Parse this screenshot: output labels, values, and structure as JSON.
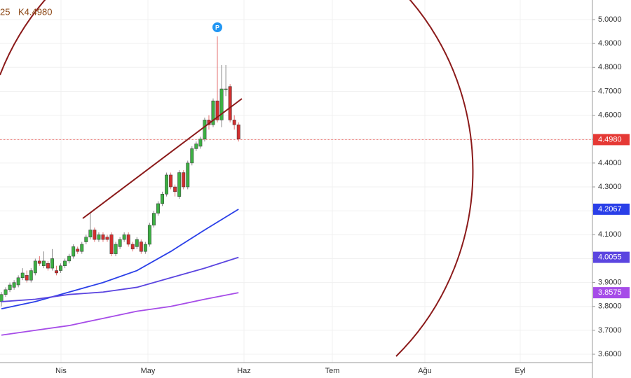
{
  "chart_data": {
    "type": "candlestick",
    "header": [
      "25",
      "K4.4980"
    ],
    "marker_label": "P",
    "x_axis_labels": [
      "Nis",
      "May",
      "Haz",
      "Tem",
      "Ağu",
      "Eyl"
    ],
    "ylim": [
      3.565,
      5.082
    ],
    "yticks": [
      {
        "value": 3.6,
        "label": "3.6000"
      },
      {
        "value": 3.7,
        "label": "3.7000"
      },
      {
        "value": 3.8,
        "label": "3.8000"
      },
      {
        "value": 3.9,
        "label": "3.9000"
      },
      {
        "value": 4.0,
        "label": "4.0000"
      },
      {
        "value": 4.1,
        "label": "4.1000"
      },
      {
        "value": 4.2,
        "label": "4.2000"
      },
      {
        "value": 4.3,
        "label": "4.3000"
      },
      {
        "value": 4.4,
        "label": "4.4000"
      },
      {
        "value": 4.5,
        "label": "4.5000"
      },
      {
        "value": 4.6,
        "label": "4.6000"
      },
      {
        "value": 4.7,
        "label": "4.7000"
      },
      {
        "value": 4.8,
        "label": "4.8000"
      },
      {
        "value": 4.9,
        "label": "4.9000"
      },
      {
        "value": 5.0,
        "label": "5.0000"
      }
    ],
    "grid": true,
    "up_color": "#3cb043",
    "down_color": "#d32f2f",
    "candles": [
      [
        3.82,
        3.86,
        3.8,
        3.85
      ],
      [
        3.85,
        3.88,
        3.84,
        3.87
      ],
      [
        3.87,
        3.9,
        3.86,
        3.89
      ],
      [
        3.88,
        3.91,
        3.87,
        3.9
      ],
      [
        3.89,
        3.93,
        3.88,
        3.92
      ],
      [
        3.92,
        3.96,
        3.91,
        3.94
      ],
      [
        3.93,
        3.95,
        3.9,
        3.91
      ],
      [
        3.91,
        3.96,
        3.9,
        3.95
      ],
      [
        3.94,
        4.0,
        3.93,
        3.99
      ],
      [
        3.99,
        4.01,
        3.97,
        3.98
      ],
      [
        3.97,
        4.03,
        3.96,
        3.99
      ],
      [
        3.98,
        3.99,
        3.95,
        3.96
      ],
      [
        3.96,
        4.04,
        3.95,
        4.0
      ],
      [
        3.95,
        3.97,
        3.93,
        3.94
      ],
      [
        3.95,
        3.98,
        3.94,
        3.97
      ],
      [
        3.97,
        4.0,
        3.96,
        3.99
      ],
      [
        3.99,
        4.02,
        3.98,
        4.01
      ],
      [
        4.01,
        4.06,
        4.0,
        4.05
      ],
      [
        4.04,
        4.05,
        4.02,
        4.03
      ],
      [
        4.03,
        4.07,
        4.02,
        4.06
      ],
      [
        4.07,
        4.1,
        4.06,
        4.09
      ],
      [
        4.09,
        4.19,
        4.08,
        4.12
      ],
      [
        4.12,
        4.13,
        4.07,
        4.08
      ],
      [
        4.08,
        4.11,
        4.07,
        4.1
      ],
      [
        4.1,
        4.11,
        4.07,
        4.08
      ],
      [
        4.09,
        4.1,
        4.07,
        4.08
      ],
      [
        4.1,
        4.11,
        4.01,
        4.02
      ],
      [
        4.02,
        4.07,
        4.01,
        4.06
      ],
      [
        4.05,
        4.09,
        4.04,
        4.08
      ],
      [
        4.08,
        4.11,
        4.07,
        4.1
      ],
      [
        4.1,
        4.11,
        4.05,
        4.06
      ],
      [
        4.06,
        4.07,
        4.03,
        4.04
      ],
      [
        4.05,
        4.09,
        4.04,
        4.08
      ],
      [
        4.07,
        4.08,
        4.02,
        4.03
      ],
      [
        4.03,
        4.07,
        4.02,
        4.06
      ],
      [
        4.06,
        4.15,
        4.05,
        4.14
      ],
      [
        4.14,
        4.2,
        4.13,
        4.19
      ],
      [
        4.19,
        4.24,
        4.18,
        4.23
      ],
      [
        4.23,
        4.28,
        4.22,
        4.27
      ],
      [
        4.27,
        4.36,
        4.26,
        4.35
      ],
      [
        4.35,
        4.36,
        4.29,
        4.3
      ],
      [
        4.3,
        4.31,
        4.26,
        4.28
      ],
      [
        4.26,
        4.37,
        4.25,
        4.36
      ],
      [
        4.36,
        4.37,
        4.29,
        4.3
      ],
      [
        4.3,
        4.41,
        4.29,
        4.4
      ],
      [
        4.4,
        4.47,
        4.39,
        4.46
      ],
      [
        4.46,
        4.49,
        4.45,
        4.48
      ],
      [
        4.47,
        4.51,
        4.46,
        4.5
      ],
      [
        4.5,
        4.59,
        4.49,
        4.58
      ],
      [
        4.58,
        4.6,
        4.54,
        4.56
      ],
      [
        4.56,
        4.67,
        4.55,
        4.66
      ],
      [
        4.66,
        4.93,
        4.57,
        4.58
      ],
      [
        4.58,
        4.81,
        4.55,
        4.71
      ],
      [
        4.71,
        4.81,
        4.68,
        4.71
      ],
      [
        4.72,
        4.73,
        4.57,
        4.58
      ],
      [
        4.58,
        4.6,
        4.54,
        4.56
      ],
      [
        4.56,
        4.57,
        4.49,
        4.5
      ]
    ],
    "current_price": 4.498,
    "current_price_label": "4.4980",
    "current_price_color": "#e53935",
    "ma_x": [
      0,
      8,
      16,
      24,
      32,
      40,
      48,
      56
    ],
    "series": [
      {
        "color": "#2a3fe8",
        "values": [
          3.79,
          3.82,
          3.86,
          3.9,
          3.95,
          4.03,
          4.12,
          4.2067
        ],
        "value_labels": [
          null,
          null,
          null,
          null,
          null,
          null,
          null,
          "4.2067"
        ]
      },
      {
        "color": "#5b45e0",
        "values": [
          3.82,
          3.83,
          3.85,
          3.86,
          3.88,
          3.92,
          3.96,
          4.0055
        ],
        "value_labels": [
          null,
          null,
          null,
          null,
          null,
          null,
          null,
          "4.0055"
        ]
      },
      {
        "color": "#a64ce8",
        "values": [
          3.68,
          3.7,
          3.72,
          3.75,
          3.78,
          3.8,
          3.83,
          3.8575
        ],
        "value_labels": [
          null,
          null,
          null,
          null,
          null,
          null,
          null,
          "3.8575"
        ]
      }
    ]
  }
}
